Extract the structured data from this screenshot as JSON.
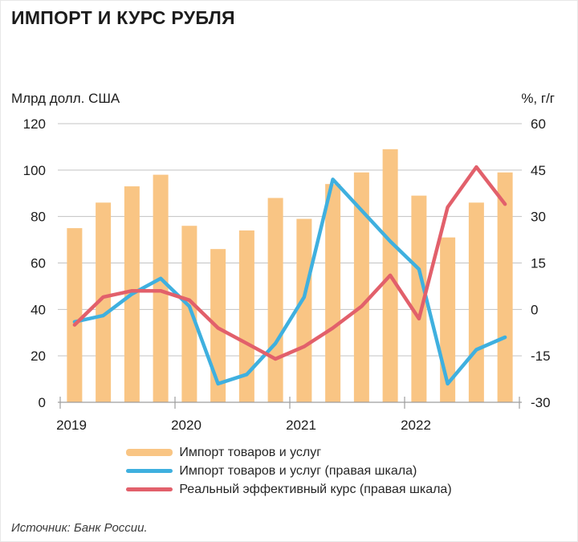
{
  "title": "ИМПОРТ И КУРС РУБЛЯ",
  "axes": {
    "left_unit": "Млрд долл. США",
    "right_unit": "%, г/г",
    "left_ticks": [
      120,
      100,
      80,
      60,
      40,
      20,
      0
    ],
    "right_ticks": [
      60,
      45,
      30,
      15,
      0,
      -15,
      -30
    ],
    "x_labels": [
      "2019",
      "2020",
      "2021",
      "2022"
    ]
  },
  "legend": [
    {
      "label": "Импорт товаров и услуг",
      "type": "bar",
      "color": "#F9C584"
    },
    {
      "label": "Импорт товаров и услуг (правая шкала)",
      "type": "line",
      "color": "#3FB0DF"
    },
    {
      "label": "Реальный эффективный курс (правая шкала)",
      "type": "line",
      "color": "#E2606B"
    }
  ],
  "source": "Источник: Банк России.",
  "colors": {
    "bars": "#F9C584",
    "import_yoy_line": "#3FB0DF",
    "reer_line": "#E2606B",
    "gridline": "#c3c3c3",
    "axis": "#9e9e9e",
    "tick_text": "#1c1c1c"
  },
  "chart_data": {
    "type": "bar",
    "subtype": "bar+line combo, dual axis",
    "categories": [
      "2019 Q1",
      "2019 Q2",
      "2019 Q3",
      "2019 Q4",
      "2020 Q1",
      "2020 Q2",
      "2020 Q3",
      "2020 Q4",
      "2021 Q1",
      "2021 Q2",
      "2021 Q3",
      "2021 Q4",
      "2022 Q1",
      "2022 Q2",
      "2022 Q3",
      "2022 Q4"
    ],
    "series": [
      {
        "name": "Импорт товаров и услуг",
        "type": "bar",
        "axis": "left",
        "values": [
          75,
          86,
          93,
          98,
          76,
          66,
          74,
          88,
          79,
          94,
          99,
          109,
          89,
          71,
          86,
          99
        ]
      },
      {
        "name": "Импорт товаров и услуг (правая шкала)",
        "type": "line",
        "axis": "right",
        "values": [
          -4,
          -2,
          5,
          10,
          1,
          -24,
          -21,
          -11,
          4,
          42,
          32,
          22,
          13,
          -24,
          -13,
          -9
        ]
      },
      {
        "name": "Реальный эффективный курс (правая шкала)",
        "type": "line",
        "axis": "right",
        "values": [
          -5,
          4,
          6,
          6,
          3,
          -6,
          -11,
          -16,
          -12,
          -6,
          1,
          11,
          -3,
          33,
          46,
          34
        ]
      }
    ],
    "left_axis": {
      "label": "Млрд долл. США",
      "range": [
        0,
        120
      ],
      "ticks": [
        0,
        20,
        40,
        60,
        80,
        100,
        120
      ]
    },
    "right_axis": {
      "label": "%, г/г",
      "range": [
        -30,
        60
      ],
      "ticks": [
        -30,
        -15,
        0,
        15,
        30,
        45,
        60
      ]
    },
    "x_axis": {
      "year_labels": [
        "2019",
        "2020",
        "2021",
        "2022"
      ]
    },
    "grid": true,
    "legend_position": "bottom",
    "title": "ИМПОРТ И КУРС РУБЛЯ",
    "source": "Источник: Банк России."
  }
}
